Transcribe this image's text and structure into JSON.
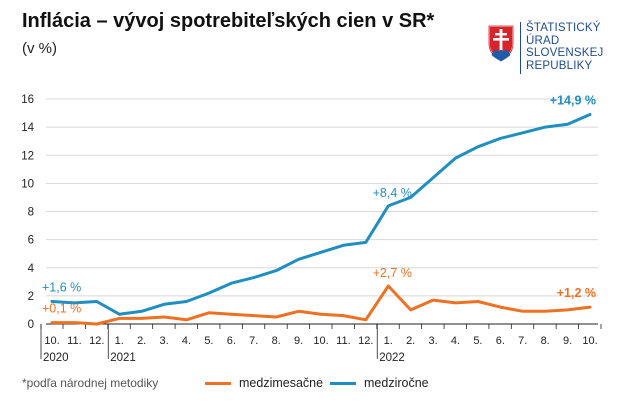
{
  "header": {
    "title": "Inflácia – vývoj spotrebiteľských cien v SR*",
    "subtitle": "(v %)"
  },
  "logo": {
    "lines": [
      "ŠTATISTICKÝ",
      "ÚRAD",
      "SLOVENSKEJ",
      "REPUBLIKY"
    ]
  },
  "footnote": "*podľa národnej metodiky",
  "legend": {
    "items": [
      {
        "label": "medzimesačne",
        "color": "#f07022"
      },
      {
        "label": "medziročne",
        "color": "#1f8ec0"
      }
    ]
  },
  "chart_data": {
    "type": "line",
    "categories": [
      "10.",
      "11.",
      "12.",
      "1.",
      "2.",
      "3.",
      "4.",
      "5.",
      "6.",
      "7.",
      "8.",
      "9.",
      "10.",
      "11.",
      "12.",
      "1.",
      "2.",
      "3.",
      "4.",
      "5.",
      "6.",
      "7.",
      "8.",
      "9.",
      "10."
    ],
    "year_labels": [
      {
        "label": "2020",
        "index": 0
      },
      {
        "label": "2021",
        "index": 3
      },
      {
        "label": "2022",
        "index": 15
      }
    ],
    "ylim": [
      0,
      16
    ],
    "yticks": [
      0,
      2,
      4,
      6,
      8,
      10,
      12,
      14,
      16
    ],
    "series": [
      {
        "name": "medzimesačne",
        "color": "#f07022",
        "values": [
          0.1,
          0.1,
          0.0,
          0.4,
          0.4,
          0.5,
          0.3,
          0.8,
          0.7,
          0.6,
          0.5,
          0.9,
          0.7,
          0.6,
          0.3,
          2.7,
          1.0,
          1.7,
          1.5,
          1.6,
          1.2,
          0.9,
          0.9,
          1.0,
          1.2
        ]
      },
      {
        "name": "medziročne",
        "color": "#1f8ec0",
        "values": [
          1.6,
          1.5,
          1.6,
          0.7,
          0.9,
          1.4,
          1.6,
          2.2,
          2.9,
          3.3,
          3.8,
          4.6,
          5.1,
          5.6,
          5.8,
          8.4,
          9.0,
          10.4,
          11.8,
          12.6,
          13.2,
          13.6,
          14.0,
          14.2,
          14.9
        ]
      }
    ],
    "annotations": [
      {
        "text": "+0,1 %",
        "series": 0,
        "index": 0
      },
      {
        "text": "+2,7 %",
        "series": 0,
        "index": 15
      },
      {
        "text": "+1,2 %",
        "series": 0,
        "index": 24
      },
      {
        "text": "+1,6 %",
        "series": 1,
        "index": 0
      },
      {
        "text": "+8,4 %",
        "series": 1,
        "index": 15
      },
      {
        "text": "+14,9 %",
        "series": 1,
        "index": 24
      }
    ]
  }
}
